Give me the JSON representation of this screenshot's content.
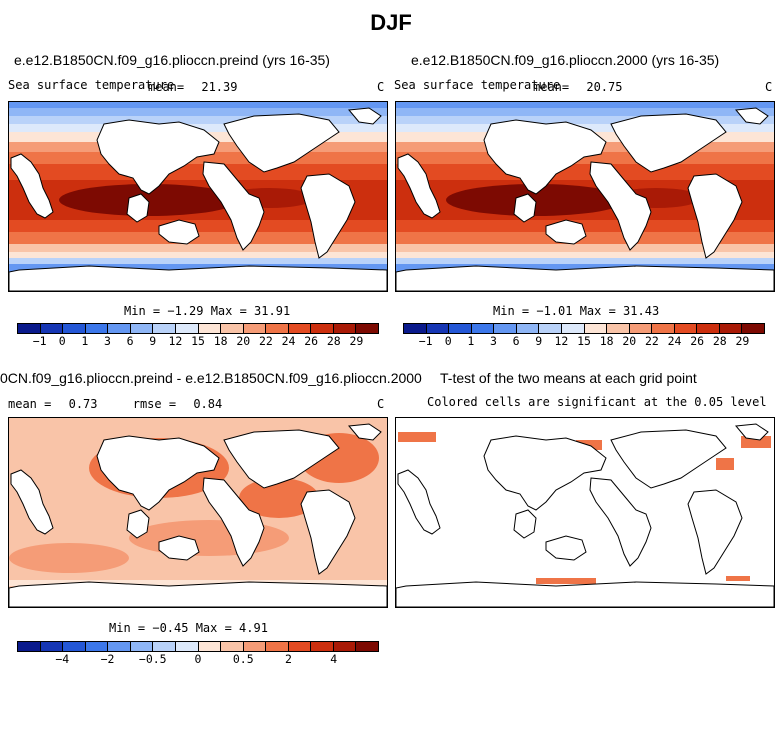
{
  "figure_title": "DJF",
  "panels": [
    {
      "title": "e.e12.B1850CN.f09_g16.plioccn.preind (yrs 16-35)",
      "subtitle_left": "Sea surface temperature",
      "mean_label": "mean=",
      "mean_value": "21.39",
      "units": "C",
      "minmax": "Min =  −1.29 Max =  31.91"
    },
    {
      "title": "e.e12.B1850CN.f09_g16.plioccn.2000 (yrs 16-35)",
      "subtitle_left": "Sea surface temperature",
      "mean_label": "mean=",
      "mean_value": "20.75",
      "units": "C",
      "minmax": "Min =  −1.01 Max =  31.43"
    },
    {
      "title": "0CN.f09_g16.plioccn.preind - e.e12.B1850CN.f09_g16.plioccn.2000",
      "mean_label": "mean =",
      "mean_value": "0.73",
      "rmse_label": "rmse =",
      "rmse_value": "0.84",
      "units": "C",
      "minmax": "Min =  −0.45 Max =   4.91"
    },
    {
      "title": "T-test of the two means at each grid point",
      "subtitle": "Colored cells are significant at the 0.05 level"
    }
  ],
  "colorbar_sst": {
    "colors": [
      "#0a1a8c",
      "#1636b4",
      "#2457d6",
      "#3c77ea",
      "#6497f2",
      "#8fb6f6",
      "#b9d2f9",
      "#dde9fb",
      "#fde5d6",
      "#f9c4a8",
      "#f59c77",
      "#ef7447",
      "#e34b22",
      "#cc2f0e",
      "#a91a06",
      "#7d0a02"
    ],
    "labels": [
      "−1",
      "0",
      "1",
      "3",
      "6",
      "9",
      "12",
      "15",
      "18",
      "20",
      "22",
      "24",
      "26",
      "28",
      "29"
    ]
  },
  "colorbar_diff": {
    "colors": [
      "#0a1a8c",
      "#1636b4",
      "#2457d6",
      "#3c77ea",
      "#6497f2",
      "#8fb6f6",
      "#b9d2f9",
      "#dde9fb",
      "#fde5d6",
      "#f9c4a8",
      "#f59c77",
      "#ef7447",
      "#e34b22",
      "#cc2f0e",
      "#a91a06",
      "#7d0a02"
    ],
    "labels": [
      "−4",
      "−2",
      "−0.5",
      "0",
      "0.5",
      "2",
      "4"
    ]
  }
}
